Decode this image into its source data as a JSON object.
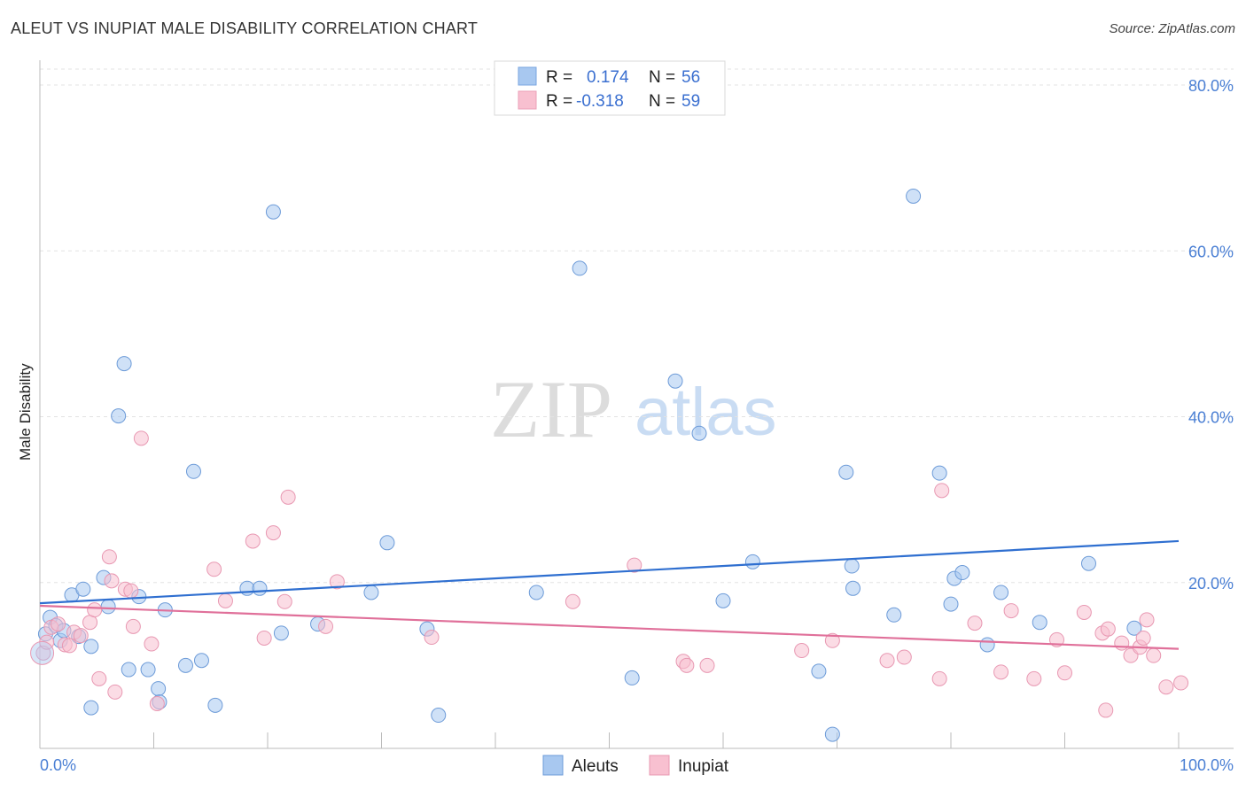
{
  "title": "ALEUT VS INUPIAT MALE DISABILITY CORRELATION CHART",
  "source": "Source: ZipAtlas.com",
  "watermark": {
    "zip": "ZIP",
    "atlas": "atlas"
  },
  "legend_top": [
    {
      "r_label": "R =",
      "r_value": "0.174",
      "n_label": "N =",
      "n_value": "56",
      "color": "#a8c8f0",
      "stroke": "#7aa6e0"
    },
    {
      "r_label": "R =",
      "r_value": "-0.318",
      "n_label": "N =",
      "n_value": "59",
      "color": "#f8c0d0",
      "stroke": "#eba0b8"
    }
  ],
  "chart_data": {
    "type": "scatter",
    "xlabel": "",
    "ylabel": "Male Disability",
    "xlim": [
      0,
      100
    ],
    "ylim": [
      0,
      80
    ],
    "x_tick_labels": [
      "0.0%",
      "100.0%"
    ],
    "y_ticks": [
      20,
      40,
      60,
      80
    ],
    "y_tick_labels": [
      "20.0%",
      "40.0%",
      "60.0%",
      "80.0%"
    ],
    "grid": true,
    "legend_position": "bottom-center",
    "series": [
      {
        "name": "Aleuts",
        "color": "#a8c8f0",
        "stroke": "#6d9bd8",
        "trend_color": "#2f6fd0",
        "trend": [
          [
            0,
            17.5
          ],
          [
            100,
            25.0
          ]
        ],
        "points": [
          [
            0.5,
            13.8
          ],
          [
            0.9,
            15.8
          ],
          [
            1.4,
            14.8
          ],
          [
            1.8,
            13.0
          ],
          [
            2.1,
            14.2
          ],
          [
            2.8,
            18.5
          ],
          [
            3.4,
            13.5
          ],
          [
            3.8,
            19.2
          ],
          [
            4.5,
            12.3
          ],
          [
            4.5,
            4.9
          ],
          [
            5.6,
            20.6
          ],
          [
            6.0,
            17.1
          ],
          [
            7.4,
            46.4
          ],
          [
            7.8,
            9.5
          ],
          [
            6.9,
            40.1
          ],
          [
            8.7,
            18.3
          ],
          [
            9.5,
            9.5
          ],
          [
            10.4,
            7.2
          ],
          [
            10.5,
            5.6
          ],
          [
            11.0,
            16.7
          ],
          [
            12.8,
            10.0
          ],
          [
            13.5,
            33.4
          ],
          [
            14.2,
            10.6
          ],
          [
            15.4,
            5.2
          ],
          [
            18.2,
            19.3
          ],
          [
            19.3,
            19.3
          ],
          [
            20.5,
            64.7
          ],
          [
            21.2,
            13.9
          ],
          [
            24.4,
            15.0
          ],
          [
            29.1,
            18.8
          ],
          [
            30.5,
            24.8
          ],
          [
            34.0,
            14.4
          ],
          [
            35.0,
            4.0
          ],
          [
            43.6,
            18.8
          ],
          [
            47.4,
            57.9
          ],
          [
            52.0,
            8.5
          ],
          [
            55.8,
            44.3
          ],
          [
            57.9,
            38.0
          ],
          [
            60.0,
            17.8
          ],
          [
            62.6,
            22.5
          ],
          [
            68.4,
            9.3
          ],
          [
            69.6,
            1.7
          ],
          [
            70.8,
            33.3
          ],
          [
            71.3,
            22.0
          ],
          [
            71.4,
            19.3
          ],
          [
            75.0,
            16.1
          ],
          [
            76.7,
            66.6
          ],
          [
            79.0,
            33.2
          ],
          [
            80.0,
            17.4
          ],
          [
            80.3,
            20.5
          ],
          [
            81.0,
            21.2
          ],
          [
            83.2,
            12.5
          ],
          [
            84.4,
            18.8
          ],
          [
            87.8,
            15.2
          ],
          [
            92.1,
            22.3
          ],
          [
            96.1,
            14.5
          ]
        ]
      },
      {
        "name": "Inupiat",
        "color": "#f8c0d0",
        "stroke": "#e898b2",
        "trend_color": "#e0709a",
        "trend": [
          [
            0,
            17.2
          ],
          [
            100,
            12.0
          ]
        ],
        "points": [
          [
            0.3,
            11.5
          ],
          [
            0.6,
            12.8
          ],
          [
            1.0,
            14.6
          ],
          [
            1.6,
            15.0
          ],
          [
            2.2,
            12.5
          ],
          [
            2.6,
            12.4
          ],
          [
            3.0,
            14.0
          ],
          [
            3.6,
            13.6
          ],
          [
            4.4,
            15.2
          ],
          [
            4.8,
            16.7
          ],
          [
            5.2,
            8.4
          ],
          [
            6.1,
            23.1
          ],
          [
            6.3,
            20.2
          ],
          [
            6.6,
            6.8
          ],
          [
            7.5,
            19.2
          ],
          [
            8.0,
            19.0
          ],
          [
            8.2,
            14.7
          ],
          [
            8.9,
            37.4
          ],
          [
            9.8,
            12.6
          ],
          [
            10.3,
            5.4
          ],
          [
            15.3,
            21.6
          ],
          [
            16.3,
            17.8
          ],
          [
            18.7,
            25.0
          ],
          [
            19.7,
            13.3
          ],
          [
            20.5,
            26.0
          ],
          [
            21.5,
            17.7
          ],
          [
            21.8,
            30.3
          ],
          [
            25.1,
            14.7
          ],
          [
            26.1,
            20.1
          ],
          [
            34.4,
            13.4
          ],
          [
            46.8,
            17.7
          ],
          [
            52.2,
            22.1
          ],
          [
            56.5,
            10.5
          ],
          [
            56.8,
            10.0
          ],
          [
            58.6,
            10.0
          ],
          [
            66.9,
            11.8
          ],
          [
            69.6,
            13.0
          ],
          [
            74.4,
            10.6
          ],
          [
            75.9,
            11.0
          ],
          [
            79.0,
            8.4
          ],
          [
            79.2,
            31.1
          ],
          [
            82.1,
            15.1
          ],
          [
            84.4,
            9.2
          ],
          [
            85.3,
            16.6
          ],
          [
            87.3,
            8.4
          ],
          [
            89.3,
            13.1
          ],
          [
            90.0,
            9.1
          ],
          [
            91.7,
            16.4
          ],
          [
            93.3,
            13.9
          ],
          [
            93.6,
            4.6
          ],
          [
            93.8,
            14.4
          ],
          [
            95.0,
            12.7
          ],
          [
            95.8,
            11.2
          ],
          [
            96.6,
            12.2
          ],
          [
            96.9,
            13.3
          ],
          [
            97.2,
            15.5
          ],
          [
            97.8,
            11.2
          ],
          [
            98.9,
            7.4
          ],
          [
            100.2,
            7.9
          ]
        ]
      }
    ]
  }
}
